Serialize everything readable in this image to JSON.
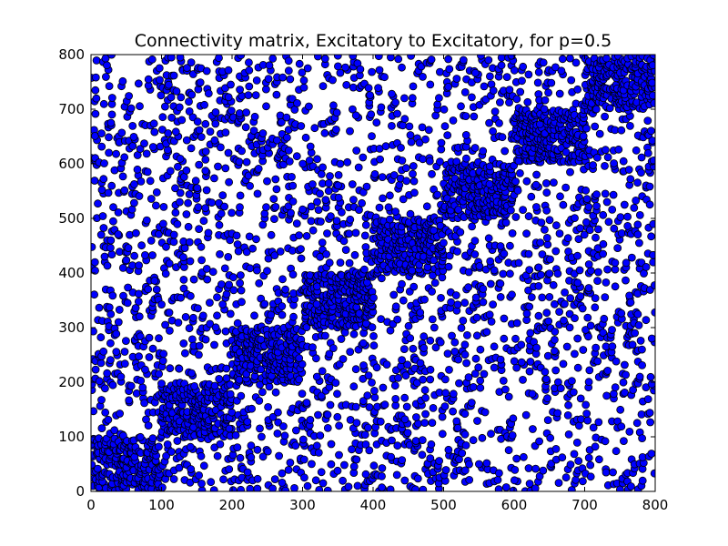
{
  "chart_data": {
    "type": "scatter",
    "title": "Connectivity matrix, Excitatory to Excitatory, for p=0.5",
    "xlabel": "",
    "ylabel": "",
    "xlim": [
      0,
      800
    ],
    "ylim": [
      0,
      800
    ],
    "xticks": [
      0,
      100,
      200,
      300,
      400,
      500,
      600,
      700,
      800
    ],
    "yticks": [
      0,
      100,
      200,
      300,
      400,
      500,
      600,
      700,
      800
    ],
    "grid": false,
    "legend": "none",
    "marker_color": "#0000ff",
    "marker_edge": "#000000",
    "structure": {
      "block_size": 100,
      "diagonal_blocks": [
        [
          0,
          100
        ],
        [
          100,
          200
        ],
        [
          200,
          300
        ],
        [
          300,
          400
        ],
        [
          400,
          500
        ],
        [
          500,
          600
        ],
        [
          600,
          700
        ],
        [
          700,
          800
        ]
      ],
      "within_block_density": 0.5,
      "outside_block_density": 0.008
    }
  }
}
